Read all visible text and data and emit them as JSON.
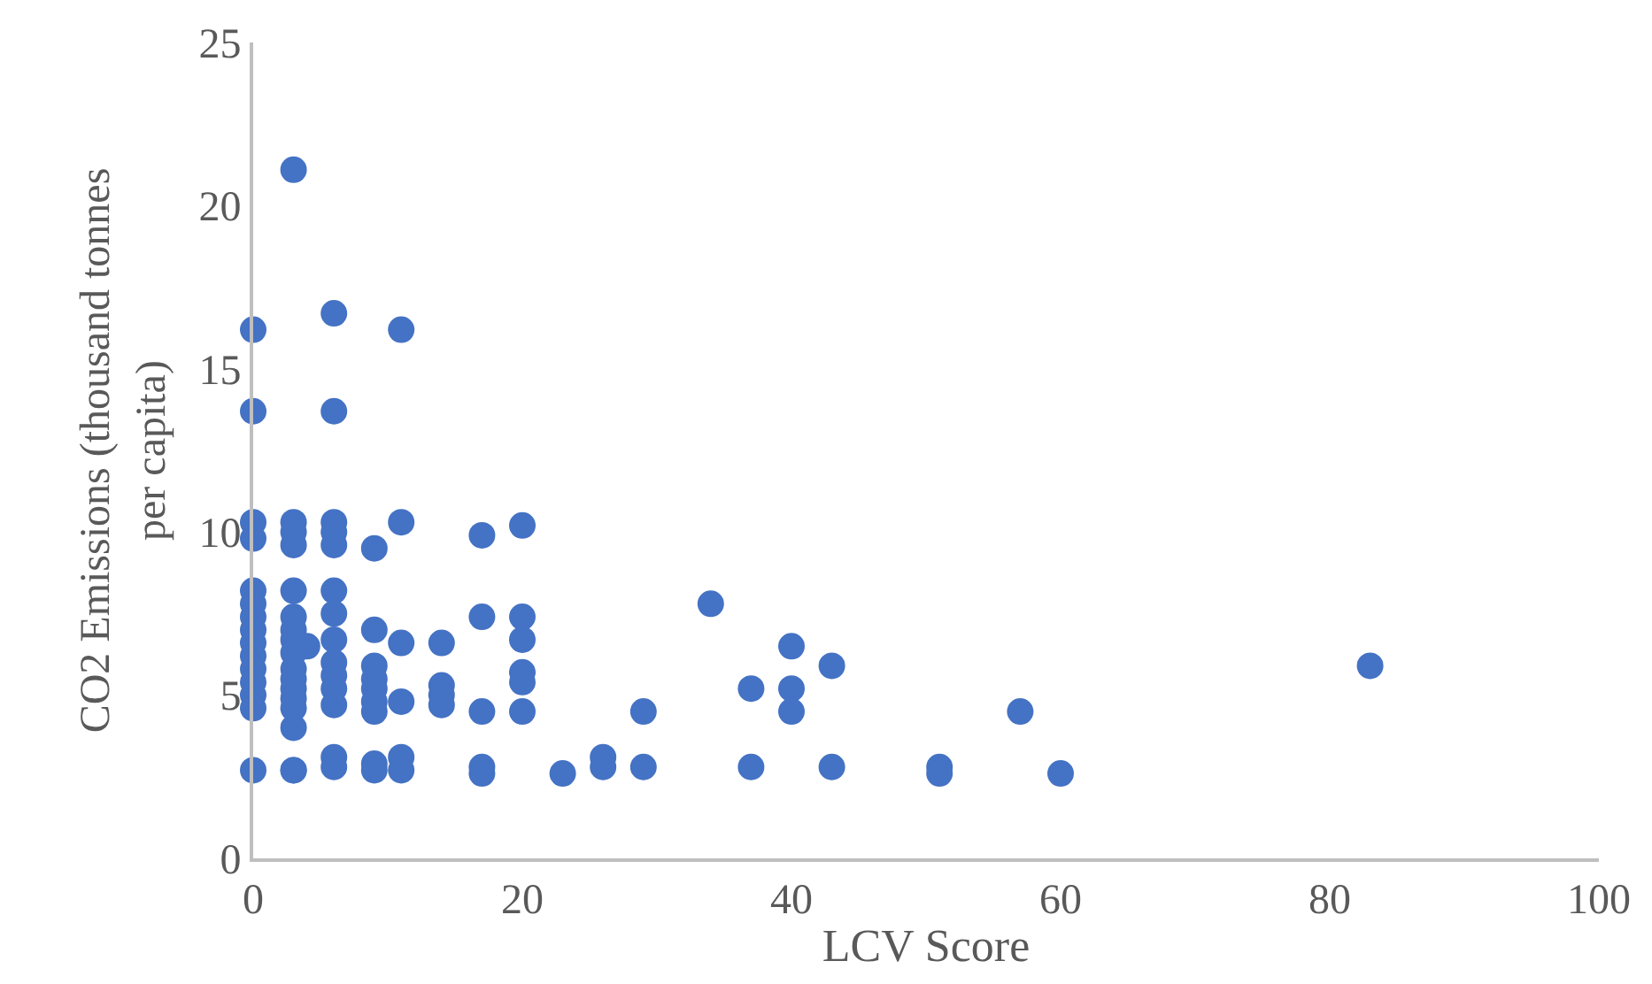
{
  "chart_data": {
    "type": "scatter",
    "xlabel": "LCV Score",
    "ylabel": "CO2 Emissions (thousand tonnes per capita)",
    "xlim": [
      0,
      100
    ],
    "xticks": [
      0,
      20,
      40,
      60,
      80,
      100
    ],
    "ylim": [
      0,
      25
    ],
    "yticks": [
      0,
      5,
      10,
      15,
      20,
      25
    ],
    "marker": "circle",
    "series": [
      {
        "color": "#4472c4",
        "x": [
          0,
          0,
          0,
          0,
          0,
          0,
          0,
          0,
          0,
          0,
          0,
          0,
          0,
          0,
          0,
          3,
          3,
          3,
          3,
          3,
          3,
          3,
          3,
          3,
          3,
          3,
          3,
          3,
          3,
          3,
          3,
          3,
          4,
          6,
          6,
          6,
          6,
          6,
          6,
          6,
          6,
          6,
          6,
          6,
          6,
          6,
          6,
          9,
          9,
          9,
          9,
          9,
          9,
          9,
          9,
          9,
          11,
          11,
          11,
          11,
          11,
          11,
          14,
          14,
          14,
          14,
          17,
          17,
          17,
          17,
          17,
          20,
          20,
          20,
          20,
          20,
          20,
          23,
          26,
          26,
          29,
          29,
          34,
          37,
          37,
          40,
          40,
          40,
          43,
          43,
          51,
          51,
          57,
          60,
          83
        ],
        "values": [
          16.2,
          13.7,
          10.3,
          9.8,
          8.2,
          7.8,
          7.4,
          7.0,
          6.6,
          6.2,
          5.8,
          5.4,
          5.0,
          4.6,
          2.7,
          21.1,
          10.3,
          10.0,
          9.6,
          8.2,
          7.4,
          7.0,
          6.7,
          6.3,
          5.8,
          5.5,
          5.2,
          4.9,
          4.6,
          4.0,
          2.7,
          2.7,
          6.5,
          16.7,
          13.7,
          10.3,
          10.0,
          9.6,
          8.2,
          7.5,
          6.7,
          6.0,
          5.6,
          5.2,
          4.7,
          3.1,
          2.8,
          9.5,
          7.0,
          5.9,
          5.5,
          5.2,
          4.8,
          4.5,
          2.9,
          2.7,
          16.2,
          10.3,
          6.6,
          4.8,
          3.1,
          2.7,
          6.6,
          5.3,
          5.0,
          4.7,
          9.9,
          7.4,
          4.5,
          2.8,
          2.6,
          10.2,
          7.4,
          6.7,
          5.7,
          5.4,
          4.5,
          2.6,
          3.1,
          2.8,
          4.5,
          2.8,
          7.8,
          5.2,
          2.8,
          6.5,
          5.2,
          4.5,
          5.9,
          2.8,
          2.8,
          2.6,
          4.5,
          2.6,
          5.9
        ]
      }
    ]
  }
}
